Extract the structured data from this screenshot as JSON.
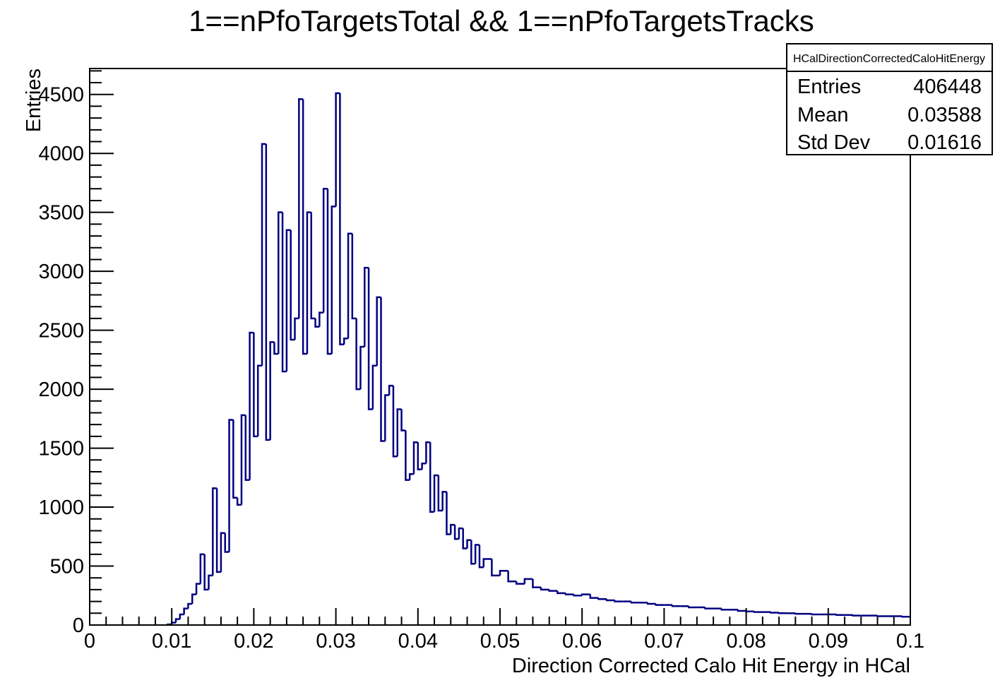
{
  "title": "1==nPfoTargetsTotal && 1==nPfoTargetsTracks",
  "stats_box": {
    "name": "HCalDirectionCorrectedCaloHitEnergy",
    "rows": [
      {
        "label": "Entries",
        "value": "406448"
      },
      {
        "label": "Mean",
        "value": "0.03588"
      },
      {
        "label": "Std Dev",
        "value": "0.01616"
      }
    ]
  },
  "chart_data": {
    "type": "histogram",
    "title": "1==nPfoTargetsTotal && 1==nPfoTargetsTracks",
    "xlabel": "Direction Corrected Calo Hit Energy in HCal",
    "ylabel": "Entries",
    "xlim": [
      0,
      0.1
    ],
    "ylim": [
      0,
      4720
    ],
    "x_ticks": [
      "0",
      "0.01",
      "0.02",
      "0.03",
      "0.04",
      "0.05",
      "0.06",
      "0.07",
      "0.08",
      "0.09",
      "0.1"
    ],
    "y_ticks": [
      "0",
      "500",
      "1000",
      "1500",
      "2000",
      "2500",
      "3000",
      "3500",
      "4000",
      "4500"
    ],
    "line_color": "#000080",
    "grid": false,
    "legend": "top-right stats box",
    "bin_width": 0.0002,
    "x": [
      0.0095,
      0.01,
      0.0105,
      0.011,
      0.0115,
      0.012,
      0.0125,
      0.013,
      0.0135,
      0.014,
      0.0145,
      0.015,
      0.0155,
      0.016,
      0.0165,
      0.017,
      0.0175,
      0.018,
      0.0185,
      0.019,
      0.0195,
      0.02,
      0.0205,
      0.021,
      0.0215,
      0.022,
      0.0225,
      0.023,
      0.0235,
      0.024,
      0.0245,
      0.025,
      0.0255,
      0.026,
      0.0265,
      0.027,
      0.0275,
      0.028,
      0.0285,
      0.029,
      0.0295,
      0.03,
      0.0305,
      0.031,
      0.0315,
      0.032,
      0.0325,
      0.033,
      0.0335,
      0.034,
      0.0345,
      0.035,
      0.0355,
      0.036,
      0.0365,
      0.037,
      0.0375,
      0.038,
      0.0385,
      0.039,
      0.0395,
      0.04,
      0.0405,
      0.041,
      0.0415,
      0.042,
      0.0425,
      0.043,
      0.0435,
      0.044,
      0.0445,
      0.045,
      0.0455,
      0.046,
      0.0465,
      0.047,
      0.0475,
      0.048,
      0.049,
      0.05,
      0.051,
      0.052,
      0.053,
      0.054,
      0.055,
      0.056,
      0.057,
      0.058,
      0.059,
      0.06,
      0.061,
      0.062,
      0.063,
      0.064,
      0.065,
      0.066,
      0.067,
      0.068,
      0.069,
      0.07,
      0.071,
      0.072,
      0.073,
      0.074,
      0.075,
      0.076,
      0.077,
      0.078,
      0.079,
      0.08,
      0.081,
      0.082,
      0.083,
      0.084,
      0.085,
      0.086,
      0.087,
      0.088,
      0.089,
      0.09,
      0.091,
      0.092,
      0.093,
      0.094,
      0.095,
      0.096,
      0.097,
      0.098,
      0.099,
      0.0998
    ],
    "y": [
      5,
      20,
      50,
      90,
      140,
      180,
      260,
      350,
      600,
      300,
      420,
      1160,
      450,
      780,
      620,
      1740,
      1080,
      1020,
      1780,
      1230,
      2480,
      1600,
      2200,
      4080,
      1570,
      2400,
      2300,
      3500,
      2150,
      3350,
      2420,
      2600,
      4460,
      2300,
      3500,
      2600,
      2530,
      2650,
      3700,
      2300,
      3550,
      4510,
      2380,
      2430,
      3320,
      2600,
      2000,
      2360,
      3030,
      1830,
      2200,
      2780,
      1560,
      1950,
      2030,
      1430,
      1830,
      1650,
      1230,
      1280,
      1550,
      1320,
      1370,
      1550,
      960,
      1270,
      970,
      1130,
      770,
      850,
      730,
      820,
      650,
      720,
      520,
      680,
      490,
      560,
      420,
      460,
      370,
      350,
      390,
      320,
      300,
      290,
      270,
      260,
      250,
      260,
      230,
      220,
      210,
      200,
      200,
      190,
      190,
      180,
      170,
      170,
      160,
      160,
      150,
      150,
      140,
      140,
      130,
      130,
      120,
      115,
      110,
      110,
      105,
      100,
      100,
      95,
      95,
      90,
      90,
      90,
      85,
      85,
      80,
      80,
      80,
      75,
      75,
      75,
      70,
      70
    ]
  }
}
